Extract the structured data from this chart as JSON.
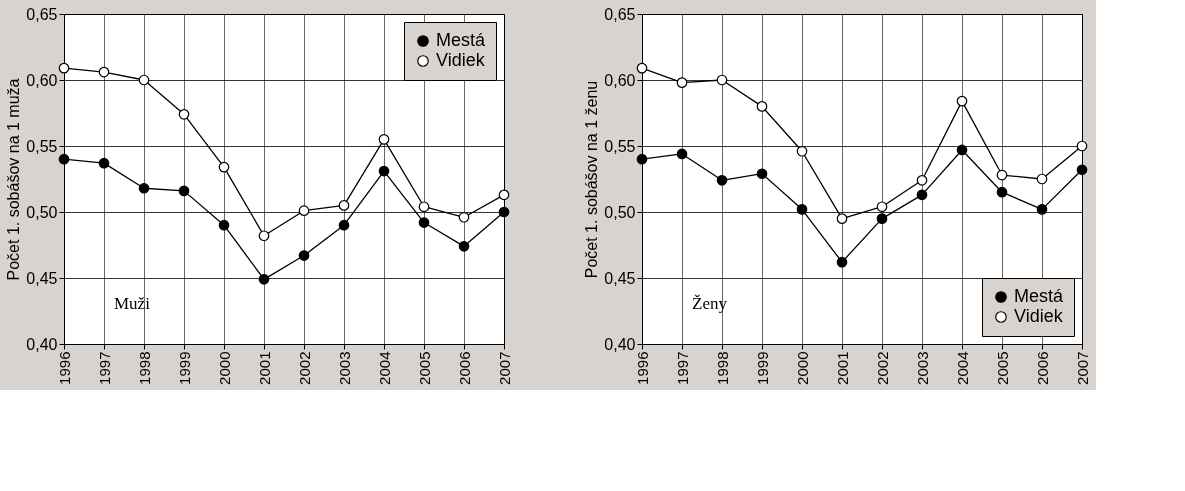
{
  "chart_data": [
    {
      "type": "line",
      "ylabel": "Počet 1. sobášov na 1 muža",
      "annotations": [
        "Muži"
      ],
      "legend": "top right",
      "grid": true,
      "marker": "circle",
      "categories": [
        "1996",
        "1997",
        "1998",
        "1999",
        "2000",
        "2001",
        "2002",
        "2003",
        "2004",
        "2005",
        "2006",
        "2007"
      ],
      "ylim": [
        0.4,
        0.65
      ],
      "yticks": [
        {
          "value": 0.4,
          "label": "0,40"
        },
        {
          "value": 0.45,
          "label": "0,45"
        },
        {
          "value": 0.5,
          "label": "0,50"
        },
        {
          "value": 0.55,
          "label": "0,55"
        },
        {
          "value": 0.6,
          "label": "0,60"
        },
        {
          "value": 0.65,
          "label": "0,65"
        }
      ],
      "series": [
        {
          "name": "Mestá",
          "color": "#000000",
          "values": [
            0.54,
            0.537,
            0.518,
            0.516,
            0.49,
            0.449,
            0.467,
            0.49,
            0.531,
            0.492,
            0.474,
            0.5
          ]
        },
        {
          "name": "Vidiek",
          "color": "#000000",
          "values": [
            0.609,
            0.606,
            0.6,
            0.574,
            0.534,
            0.482,
            0.501,
            0.505,
            0.555,
            0.504,
            0.496,
            0.513
          ]
        }
      ]
    },
    {
      "type": "line",
      "ylabel": "Počet 1. sobášov na 1 ženu",
      "annotations": [
        "Ženy"
      ],
      "legend": "bottom right",
      "grid": true,
      "marker": "circle",
      "categories": [
        "1996",
        "1997",
        "1998",
        "1999",
        "2000",
        "2001",
        "2002",
        "2003",
        "2004",
        "2005",
        "2006",
        "2007"
      ],
      "ylim": [
        0.4,
        0.65
      ],
      "yticks": [
        {
          "value": 0.4,
          "label": "0,40"
        },
        {
          "value": 0.45,
          "label": "0,45"
        },
        {
          "value": 0.5,
          "label": "0,50"
        },
        {
          "value": 0.55,
          "label": "0,55"
        },
        {
          "value": 0.6,
          "label": "0,60"
        },
        {
          "value": 0.65,
          "label": "0,65"
        }
      ],
      "series": [
        {
          "name": "Mestá",
          "color": "#000000",
          "values": [
            0.54,
            0.544,
            0.524,
            0.529,
            0.502,
            0.462,
            0.495,
            0.513,
            0.547,
            0.515,
            0.502,
            0.532
          ]
        },
        {
          "name": "Vidiek",
          "color": "#000000",
          "values": [
            0.609,
            0.598,
            0.6,
            0.58,
            0.546,
            0.495,
            0.504,
            0.524,
            0.584,
            0.528,
            0.525,
            0.55
          ]
        }
      ]
    }
  ]
}
